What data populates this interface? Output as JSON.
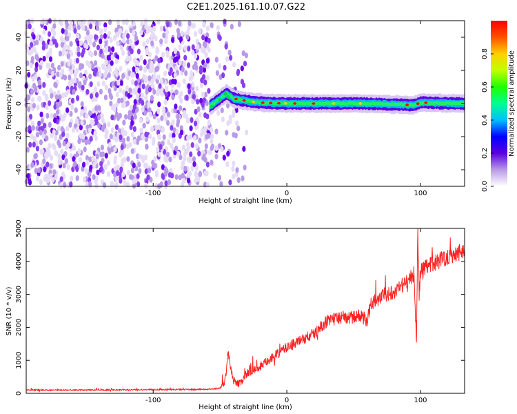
{
  "title": "C2E1.2025.161.10.07.G22",
  "chart_data": [
    {
      "type": "heatmap",
      "xlabel": "Height of straight line (km)",
      "ylabel": "Frequency (Hz)",
      "xlim": [
        -195,
        133
      ],
      "ylim": [
        -50,
        50
      ],
      "xticks": [
        -100,
        0,
        100
      ],
      "yticks": [
        -40,
        -20,
        0,
        20,
        40
      ],
      "noise_region_x": [
        -195,
        -30
      ],
      "signal_line": {
        "x_start": -58,
        "x_end": 133,
        "freq_hz": [
          [
            -58,
            -2
          ],
          [
            -50,
            3
          ],
          [
            -45,
            6
          ],
          [
            -40,
            3
          ],
          [
            -30,
            1.5
          ],
          [
            -20,
            0.5
          ],
          [
            0,
            0
          ],
          [
            60,
            0
          ],
          [
            95,
            -1
          ],
          [
            100,
            0.5
          ],
          [
            133,
            0
          ]
        ]
      },
      "colorbar": {
        "label": "Normalized spectral amplitude",
        "range": [
          0,
          1
        ],
        "ticks": [
          0.0,
          0.2,
          0.4,
          0.6,
          0.8
        ],
        "colors": [
          "#ffffff",
          "#b89ae8",
          "#5a00e0",
          "#0000ff",
          "#00c0ff",
          "#00ff90",
          "#20ff00",
          "#c0ff00",
          "#ffd000",
          "#ff5000",
          "#ff0000"
        ]
      }
    },
    {
      "type": "line",
      "xlabel": "Height of straight line (km)",
      "ylabel": "SNR (10 * v/v)",
      "xlim": [
        -195,
        133
      ],
      "ylim": [
        0,
        5000
      ],
      "xticks": [
        -100,
        0,
        100
      ],
      "yticks": [
        0,
        1000,
        2000,
        3000,
        4000,
        5000
      ],
      "color": "#ff2020",
      "series": [
        {
          "x": [
            -195,
            -150,
            -100,
            -60,
            -50,
            -46,
            -44,
            -40,
            -35,
            -30,
            -20,
            -10,
            0,
            10,
            20,
            25,
            30,
            40,
            50,
            55,
            60,
            63,
            65,
            70,
            80,
            90,
            95,
            97,
            98,
            99,
            100,
            110,
            120,
            133
          ],
          "y": [
            100,
            100,
            110,
            120,
            150,
            400,
            1300,
            300,
            300,
            600,
            800,
            1100,
            1400,
            1600,
            1800,
            2000,
            2200,
            2300,
            2300,
            2350,
            2200,
            2700,
            2800,
            2900,
            3100,
            3400,
            3600,
            1600,
            5000,
            3000,
            3700,
            3950,
            4150,
            4350
          ]
        }
      ]
    }
  ]
}
